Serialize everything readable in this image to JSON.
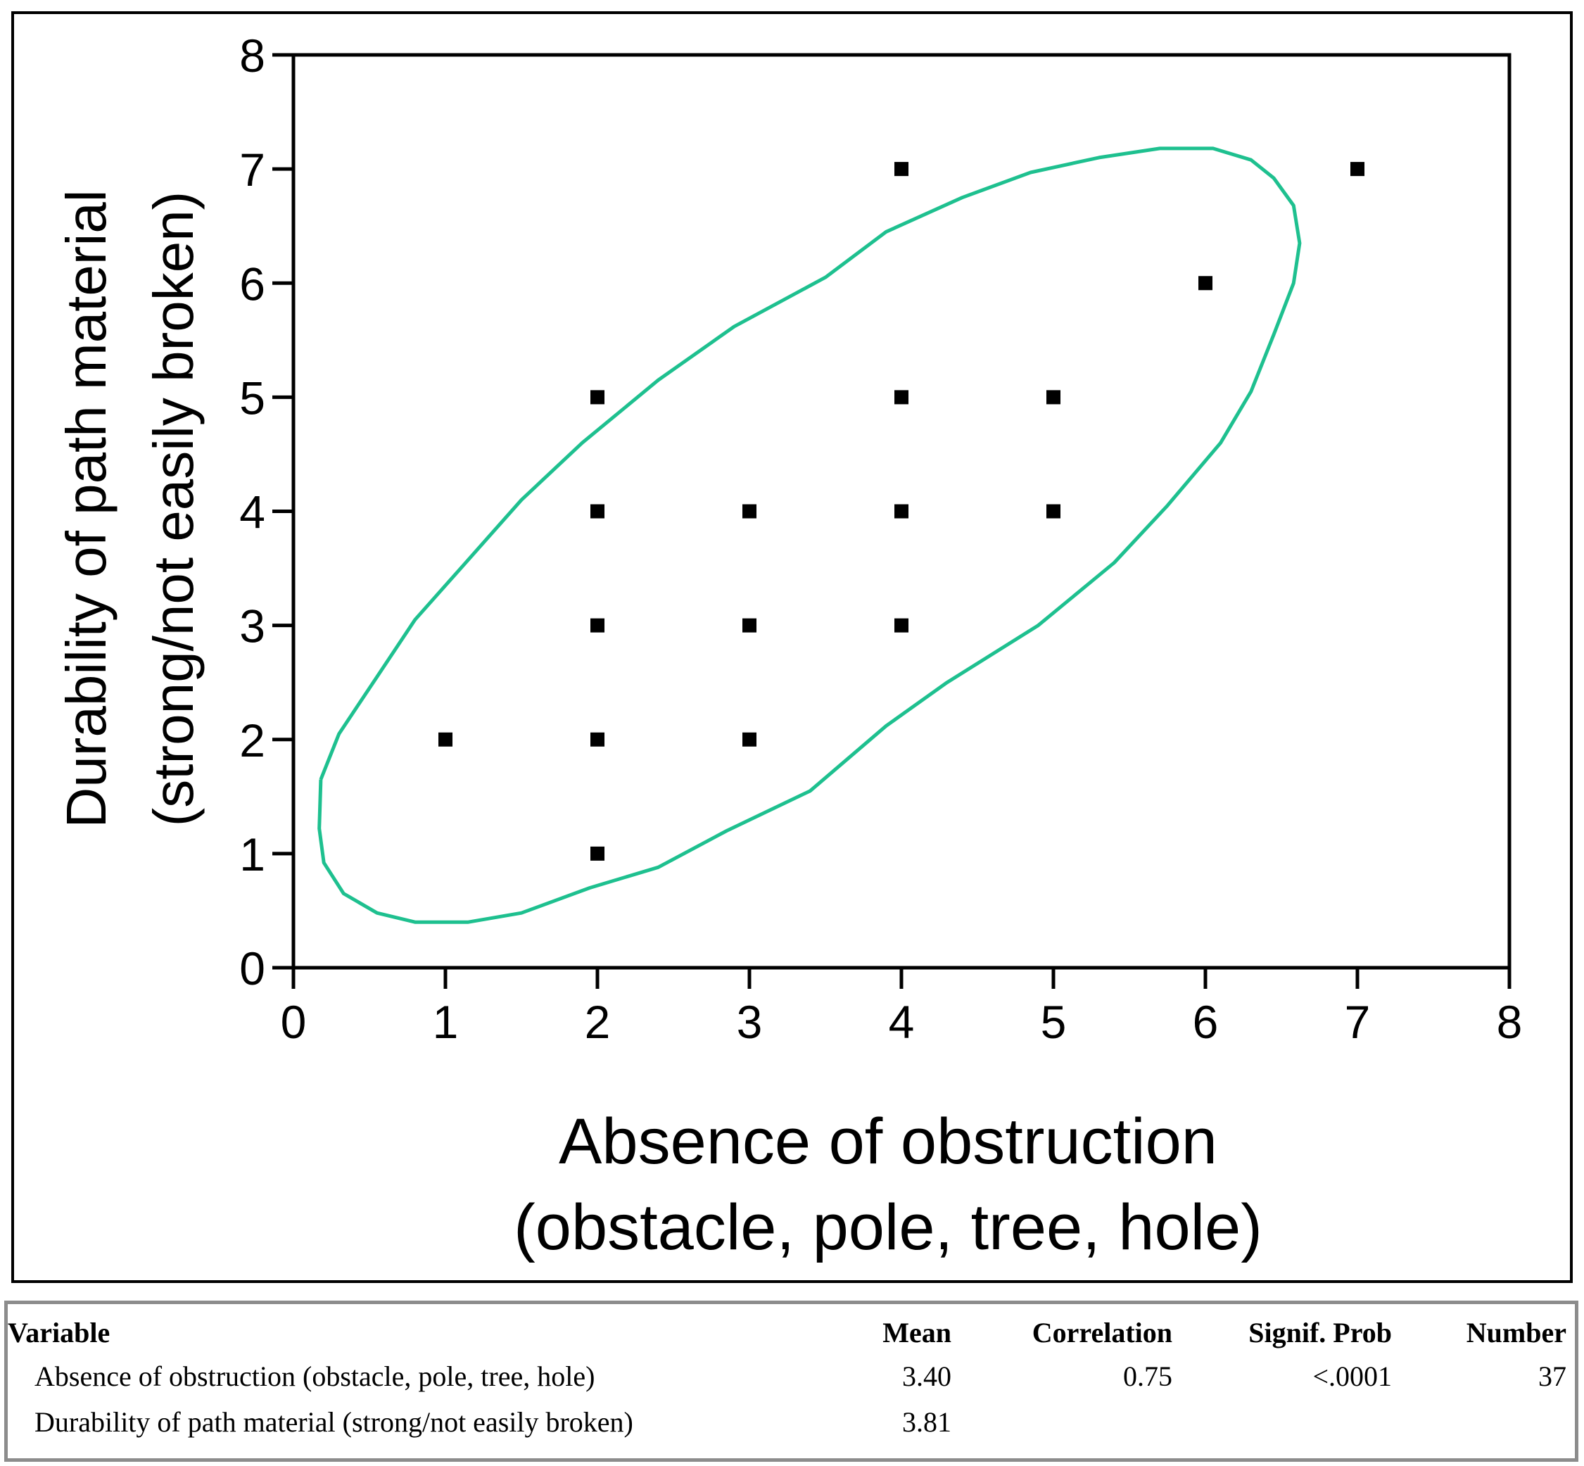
{
  "chart_data": {
    "type": "scatter",
    "xlabel_line1": "Absence of obstruction",
    "xlabel_line2": "(obstacle, pole, tree, hole)",
    "ylabel_line1": "Durability of path material",
    "ylabel_line2": "(strong/not easily broken)",
    "xlim": [
      0,
      8
    ],
    "ylim": [
      0,
      8
    ],
    "x_ticks": [
      "0",
      "1",
      "2",
      "3",
      "4",
      "5",
      "6",
      "7",
      "8"
    ],
    "y_ticks": [
      "0",
      "1",
      "2",
      "3",
      "4",
      "5",
      "6",
      "7",
      "8"
    ],
    "grid": false,
    "points": [
      {
        "x": 1,
        "y": 2
      },
      {
        "x": 2,
        "y": 1
      },
      {
        "x": 2,
        "y": 2
      },
      {
        "x": 2,
        "y": 3
      },
      {
        "x": 2,
        "y": 4
      },
      {
        "x": 2,
        "y": 5
      },
      {
        "x": 3,
        "y": 2
      },
      {
        "x": 3,
        "y": 3
      },
      {
        "x": 3,
        "y": 4
      },
      {
        "x": 4,
        "y": 3
      },
      {
        "x": 4,
        "y": 4
      },
      {
        "x": 4,
        "y": 5
      },
      {
        "x": 4,
        "y": 7
      },
      {
        "x": 5,
        "y": 4
      },
      {
        "x": 5,
        "y": 5
      },
      {
        "x": 6,
        "y": 6
      },
      {
        "x": 7,
        "y": 7
      }
    ],
    "marker_color": "#000000",
    "ellipse": {
      "color": "#1ec08f",
      "outline": [
        [
          0.18,
          1.65
        ],
        [
          0.3,
          2.05
        ],
        [
          0.55,
          2.55
        ],
        [
          0.8,
          3.05
        ],
        [
          1.1,
          3.5
        ],
        [
          1.5,
          4.1
        ],
        [
          1.9,
          4.6
        ],
        [
          2.4,
          5.15
        ],
        [
          2.9,
          5.62
        ],
        [
          3.5,
          6.05
        ],
        [
          3.9,
          6.45
        ],
        [
          4.4,
          6.75
        ],
        [
          4.85,
          6.97
        ],
        [
          5.3,
          7.1
        ],
        [
          5.7,
          7.18
        ],
        [
          6.05,
          7.18
        ],
        [
          6.3,
          7.08
        ],
        [
          6.45,
          6.92
        ],
        [
          6.58,
          6.68
        ],
        [
          6.62,
          6.35
        ],
        [
          6.58,
          6.0
        ],
        [
          6.45,
          5.55
        ],
        [
          6.3,
          5.05
        ],
        [
          6.1,
          4.6
        ],
        [
          5.75,
          4.05
        ],
        [
          5.4,
          3.55
        ],
        [
          4.9,
          3.0
        ],
        [
          4.3,
          2.5
        ],
        [
          3.9,
          2.12
        ],
        [
          3.4,
          1.55
        ],
        [
          2.85,
          1.2
        ],
        [
          2.4,
          0.88
        ],
        [
          1.95,
          0.7
        ],
        [
          1.5,
          0.48
        ],
        [
          1.15,
          0.4
        ],
        [
          0.8,
          0.4
        ],
        [
          0.55,
          0.48
        ],
        [
          0.33,
          0.65
        ],
        [
          0.2,
          0.92
        ],
        [
          0.17,
          1.22
        ],
        [
          0.18,
          1.65
        ]
      ]
    }
  },
  "stats_table": {
    "headers": {
      "variable": "Variable",
      "mean": "Mean",
      "correlation": "Correlation",
      "signif_prob": "Signif. Prob",
      "number": "Number"
    },
    "rows": [
      {
        "variable": "Absence of obstruction (obstacle, pole, tree, hole)",
        "mean": "3.40",
        "correlation": "0.75",
        "signif_prob": "<.0001",
        "number": "37"
      },
      {
        "variable": "Durability of path material (strong/not easily broken)",
        "mean": "3.81",
        "correlation": "",
        "signif_prob": "",
        "number": ""
      }
    ]
  }
}
